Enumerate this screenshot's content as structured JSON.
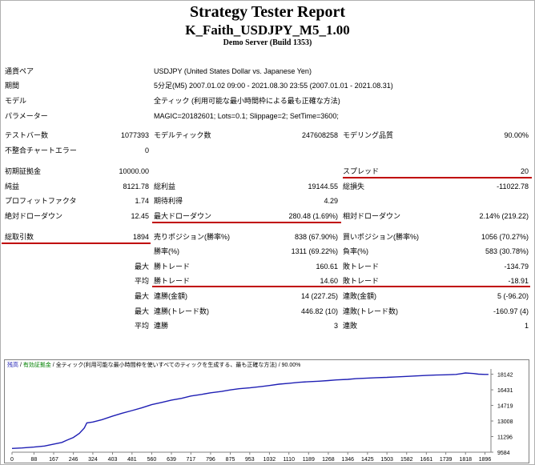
{
  "header": {
    "title": "Strategy Tester Report",
    "subtitle": "K_Faith_USDJPY_M5_1.00",
    "server": "Demo Server (Build 1353)"
  },
  "info": {
    "symbol_label": "通貨ペア",
    "symbol_value": "USDJPY (United States Dollar vs. Japanese Yen)",
    "period_label": "期間",
    "period_value": "5分足(M5) 2007.01.02 09:00 - 2021.08.30 23:55 (2007.01.01 - 2021.08.31)",
    "model_label": "モデル",
    "model_value": "全ティック (利用可能な最小時間枠による最も正確な方法)",
    "params_label": "パラメーター",
    "params_value": "MAGIC=20182601; Lots=0.1; Slippage=2; SetTime=3600;"
  },
  "stats": {
    "bars_label": "テストバー数",
    "bars_value": "1077393",
    "ticks_label": "モデルティック数",
    "ticks_value": "247608258",
    "quality_label": "モデリング品質",
    "quality_value": "90.00%",
    "errors_label": "不整合チャートエラー",
    "errors_value": "0",
    "deposit_label": "初期証拠金",
    "deposit_value": "10000.00",
    "spread_label": "スプレッド",
    "spread_value": "20",
    "net_label": "純益",
    "net_value": "8121.78",
    "gross_profit_label": "総利益",
    "gross_profit_value": "19144.55",
    "gross_loss_label": "総損失",
    "gross_loss_value": "-11022.78",
    "pf_label": "プロフィットファクタ",
    "pf_value": "1.74",
    "expected_label": "期待利得",
    "expected_value": "4.29",
    "abs_dd_label": "絶対ドローダウン",
    "abs_dd_value": "12.45",
    "max_dd_label": "最大ドローダウン",
    "max_dd_value": "280.48 (1.69%)",
    "rel_dd_label": "相対ドローダウン",
    "rel_dd_value": "2.14% (219.22)",
    "trades_label": "総取引数",
    "trades_value": "1894",
    "short_label": "売りポジション(勝率%)",
    "short_value": "838 (67.90%)",
    "long_label": "買いポジション(勝率%)",
    "long_value": "1056 (70.27%)",
    "win_label": "勝率(%)",
    "win_value": "1311 (69.22%)",
    "loss_label": "負率(%)",
    "loss_value": "583 (30.78%)",
    "max_prefix": "最大",
    "avg_prefix": "平均",
    "largest_win_label": "勝トレード",
    "largest_win_value": "160.61",
    "largest_loss_label": "敗トレード",
    "largest_loss_value": "-134.79",
    "avg_win_label": "勝トレード",
    "avg_win_value": "14.60",
    "avg_loss_label": "敗トレード",
    "avg_loss_value": "-18.91",
    "cons_wins_money_label": "連勝(金額)",
    "cons_wins_money_value": "14 (227.25)",
    "cons_loss_money_label": "連敗(金額)",
    "cons_loss_money_value": "5 (-96.20)",
    "cons_wins_trades_label": "連勝(トレード数)",
    "cons_wins_trades_value": "446.82 (10)",
    "cons_loss_trades_label": "連敗(トレード数)",
    "cons_loss_trades_value": "-160.97 (4)",
    "avg_cons_wins_label": "連勝",
    "avg_cons_wins_value": "3",
    "avg_cons_loss_label": "連敗",
    "avg_cons_loss_value": "1"
  },
  "chart_data": {
    "type": "line",
    "legend": {
      "balance": "残高",
      "sep1": " / ",
      "lot": "有効証拠金",
      "sep2": " / ",
      "model": "全ティック(利用可能な最小時間枠を使いすべてのティックを生成する、最も正確な方法)",
      "sep3": " / ",
      "quality": "90.00%"
    },
    "colors": {
      "line": "#1f1fb4",
      "balance_text": "#1f1fb4",
      "lot_text": "#008000"
    },
    "xticks": [
      0,
      88,
      167,
      246,
      324,
      403,
      481,
      560,
      639,
      717,
      796,
      875,
      953,
      1032,
      1110,
      1189,
      1268,
      1346,
      1425,
      1503,
      1582,
      1661,
      1739,
      1818,
      1896
    ],
    "yticks": [
      9584,
      11296,
      13008,
      14719,
      16431,
      18142
    ],
    "xlim": [
      0,
      1920
    ],
    "ylim": [
      9584,
      18720
    ],
    "x": [
      0,
      40,
      88,
      130,
      167,
      200,
      220,
      246,
      270,
      290,
      300,
      324,
      360,
      403,
      440,
      481,
      520,
      560,
      600,
      639,
      680,
      717,
      760,
      796,
      840,
      875,
      910,
      953,
      1000,
      1032,
      1070,
      1110,
      1150,
      1189,
      1230,
      1268,
      1300,
      1346,
      1380,
      1425,
      1460,
      1503,
      1540,
      1582,
      1620,
      1661,
      1700,
      1739,
      1780,
      1800,
      1818,
      1850,
      1870,
      1896,
      1910
    ],
    "y": [
      10000,
      10050,
      10150,
      10260,
      10470,
      10660,
      10900,
      11200,
      11650,
      12250,
      12800,
      12900,
      13150,
      13550,
      13850,
      14150,
      14450,
      14800,
      15050,
      15300,
      15500,
      15750,
      15930,
      16100,
      16250,
      16420,
      16550,
      16650,
      16800,
      16900,
      17050,
      17150,
      17250,
      17320,
      17380,
      17450,
      17520,
      17580,
      17660,
      17720,
      17760,
      17800,
      17850,
      17900,
      17960,
      18010,
      18050,
      18080,
      18120,
      18200,
      18280,
      18220,
      18150,
      18121,
      18121
    ]
  }
}
